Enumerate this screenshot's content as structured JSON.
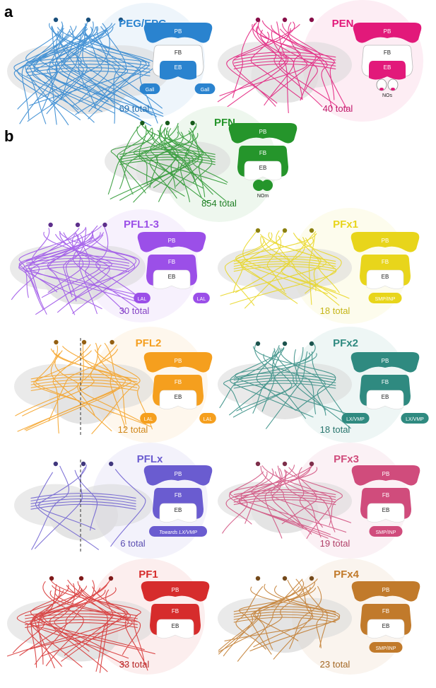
{
  "panel_labels": [
    "a",
    "b"
  ],
  "panels": [
    {
      "id": "peg-epg",
      "name": "PEG/EPG",
      "color": "#2a83cf",
      "total": "69 total",
      "bubbles": [
        {
          "label": "Gall"
        },
        {
          "label": "Gall"
        }
      ],
      "small_label": ""
    },
    {
      "id": "pen",
      "name": "PEN",
      "color": "#e2197a",
      "total": "40 total",
      "bubbles": [],
      "small_label": "NOs"
    },
    {
      "id": "pfn",
      "name": "PFN",
      "color": "#25952b",
      "total": "854 total",
      "bubbles": [],
      "small_label": "NOm"
    },
    {
      "id": "pfl1-3",
      "name": "PFL1-3",
      "color": "#9b4fe8",
      "total": "30 total",
      "bubbles": [
        {
          "label": "LAL"
        },
        {
          "label": "LAL"
        }
      ],
      "small_label": ""
    },
    {
      "id": "pfx1",
      "name": "PFx1",
      "color": "#e8d51b",
      "total": "18 total",
      "bubbles": [
        {
          "label": "SMP/INP"
        }
      ],
      "small_label": ""
    },
    {
      "id": "pfl2",
      "name": "PFL2",
      "color": "#f59f1e",
      "total": "12 total",
      "bubbles": [
        {
          "label": "LAL"
        },
        {
          "label": "LAL"
        }
      ],
      "small_label": ""
    },
    {
      "id": "pfx2",
      "name": "PFx2",
      "color": "#2f8a80",
      "total": "18 total",
      "bubbles": [
        {
          "label": "LX/VMP"
        },
        {
          "label": "LX/VMP"
        }
      ],
      "small_label": ""
    },
    {
      "id": "pflx",
      "name": "PFLx",
      "color": "#6a5cd0",
      "total": "6 total",
      "bubbles": [
        {
          "label": "Towards LX/VMP"
        }
      ],
      "small_label": ""
    },
    {
      "id": "pfx3",
      "name": "PFx3",
      "color": "#d04c7c",
      "total": "19 total",
      "bubbles": [
        {
          "label": "SMP/INP"
        }
      ],
      "small_label": ""
    },
    {
      "id": "pf1",
      "name": "PF1",
      "color": "#d62c2c",
      "total": "33 total",
      "bubbles": [],
      "small_label": ""
    },
    {
      "id": "pfx4",
      "name": "PFx4",
      "color": "#c17a2b",
      "total": "23 total",
      "bubbles": [
        {
          "label": "SMP/INP"
        }
      ],
      "small_label": ""
    }
  ],
  "region_labels": {
    "pb": "PB",
    "fb": "FB",
    "eb": "EB"
  }
}
